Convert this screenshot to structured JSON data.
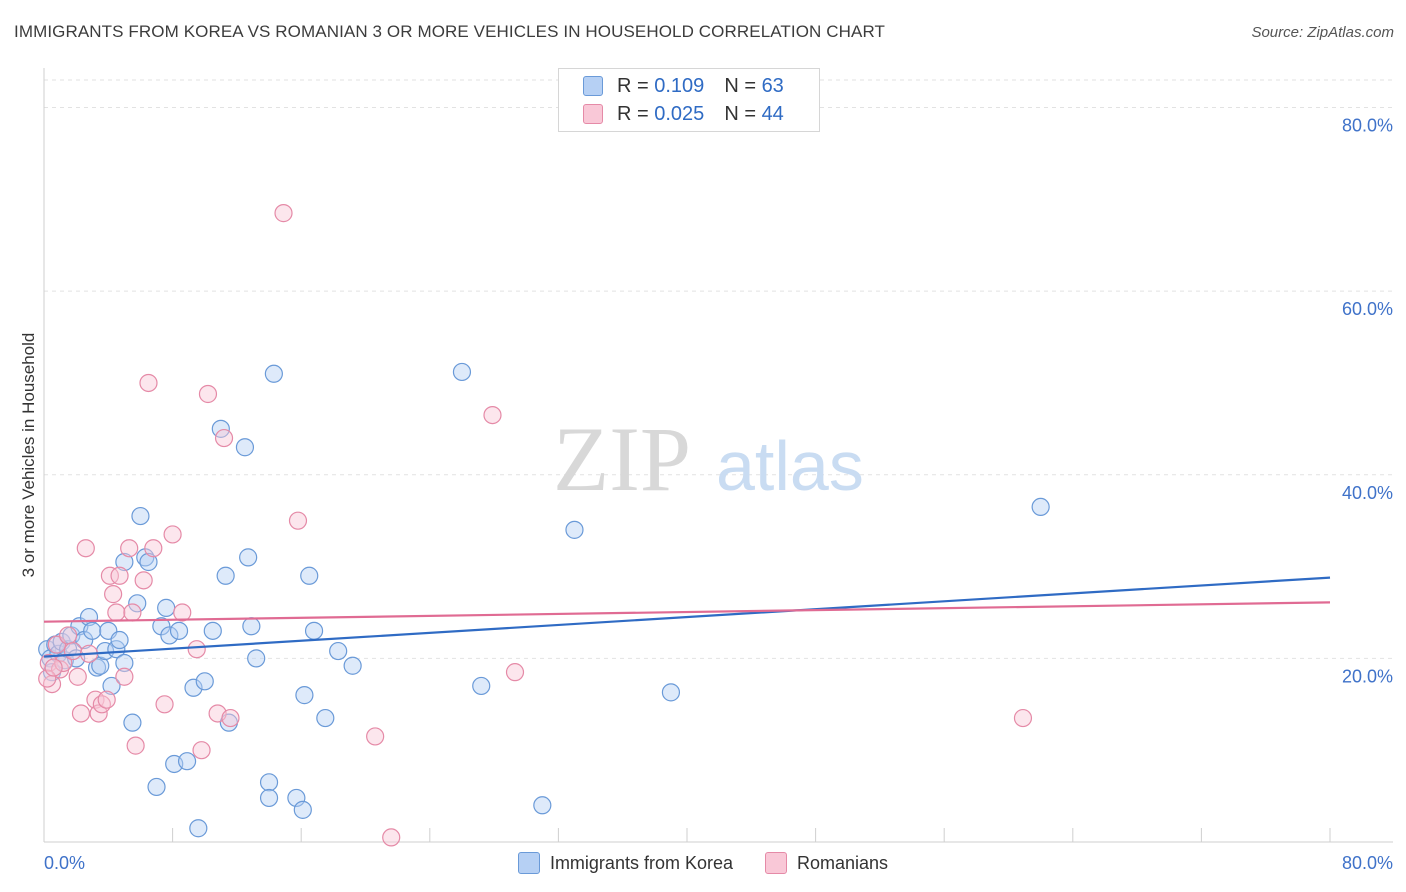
{
  "title": "IMMIGRANTS FROM KOREA VS ROMANIAN 3 OR MORE VEHICLES IN HOUSEHOLD CORRELATION CHART",
  "source": "Source: ZipAtlas.com",
  "watermark": {
    "zip": "ZIP",
    "atlas": "atlas"
  },
  "legend_top": [
    {
      "r_label": "R =",
      "r_value": "0.109",
      "n_label": "N =",
      "n_value": "63",
      "color": "#b6d0f4"
    },
    {
      "r_label": "R =",
      "r_value": "0.025",
      "n_label": "N =",
      "n_value": "44",
      "color": "#f9c8d7"
    }
  ],
  "chart_data": {
    "type": "scatter",
    "title": "IMMIGRANTS FROM KOREA VS ROMANIAN 3 OR MORE VEHICLES IN HOUSEHOLD CORRELATION CHART",
    "xlabel": "",
    "ylabel": "3 or more Vehicles in Household",
    "xlim": [
      0,
      80
    ],
    "ylim": [
      0,
      83
    ],
    "x_tick_labels": [
      "0.0%",
      "80.0%"
    ],
    "y_ticks": [
      20,
      40,
      60,
      80
    ],
    "y_tick_labels": [
      "20.0%",
      "40.0%",
      "60.0%",
      "80.0%"
    ],
    "grid": true,
    "legend_position": "bottom",
    "series": [
      {
        "name": "Immigrants from Korea",
        "color": "#6a9ad8",
        "fill": "#b6d0f4",
        "trend": {
          "x": [
            0,
            80
          ],
          "y": [
            20.2,
            28.8
          ]
        },
        "points": [
          [
            0.2,
            21.0
          ],
          [
            0.4,
            20.0
          ],
          [
            0.5,
            18.5
          ],
          [
            0.7,
            21.5
          ],
          [
            0.9,
            20.5
          ],
          [
            1.1,
            21.8
          ],
          [
            1.3,
            19.8
          ],
          [
            1.5,
            21.0
          ],
          [
            1.7,
            22.5
          ],
          [
            2.0,
            20.0
          ],
          [
            2.2,
            23.5
          ],
          [
            2.5,
            22.0
          ],
          [
            2.8,
            24.5
          ],
          [
            3.0,
            23.0
          ],
          [
            3.3,
            19.0
          ],
          [
            3.5,
            19.2
          ],
          [
            3.8,
            20.8
          ],
          [
            4.0,
            23.0
          ],
          [
            4.2,
            17.0
          ],
          [
            4.5,
            21.0
          ],
          [
            4.7,
            22.0
          ],
          [
            5.0,
            19.5
          ],
          [
            5.0,
            30.5
          ],
          [
            5.5,
            13.0
          ],
          [
            5.8,
            26.0
          ],
          [
            6.0,
            35.5
          ],
          [
            6.3,
            31.0
          ],
          [
            6.5,
            30.5
          ],
          [
            7.0,
            6.0
          ],
          [
            7.3,
            23.5
          ],
          [
            7.6,
            25.5
          ],
          [
            7.8,
            22.5
          ],
          [
            8.1,
            8.5
          ],
          [
            8.4,
            23.0
          ],
          [
            8.9,
            8.8
          ],
          [
            9.3,
            16.8
          ],
          [
            9.6,
            1.5
          ],
          [
            10.0,
            17.5
          ],
          [
            10.5,
            23.0
          ],
          [
            11.0,
            45.0
          ],
          [
            11.3,
            29.0
          ],
          [
            11.5,
            13.0
          ],
          [
            12.5,
            43.0
          ],
          [
            12.7,
            31.0
          ],
          [
            12.9,
            23.5
          ],
          [
            13.2,
            20.0
          ],
          [
            14.0,
            6.5
          ],
          [
            14.0,
            4.8
          ],
          [
            14.3,
            51.0
          ],
          [
            15.7,
            4.8
          ],
          [
            16.1,
            3.5
          ],
          [
            16.2,
            16.0
          ],
          [
            16.5,
            29.0
          ],
          [
            16.8,
            23.0
          ],
          [
            17.5,
            13.5
          ],
          [
            18.3,
            20.8
          ],
          [
            19.2,
            19.2
          ],
          [
            26.0,
            51.2
          ],
          [
            27.2,
            17.0
          ],
          [
            31.0,
            4.0
          ],
          [
            33.0,
            34.0
          ],
          [
            39.0,
            16.3
          ],
          [
            62.0,
            36.5
          ]
        ]
      },
      {
        "name": "Romanians",
        "color": "#e58aa7",
        "fill": "#f9c8d7",
        "trend": {
          "x": [
            0,
            80
          ],
          "y": [
            24.0,
            26.1
          ]
        },
        "points": [
          [
            0.3,
            19.5
          ],
          [
            0.5,
            17.2
          ],
          [
            0.8,
            21.5
          ],
          [
            1.0,
            18.8
          ],
          [
            1.2,
            19.5
          ],
          [
            1.5,
            22.5
          ],
          [
            1.8,
            20.8
          ],
          [
            2.1,
            18.0
          ],
          [
            2.3,
            14.0
          ],
          [
            2.6,
            32.0
          ],
          [
            2.8,
            20.5
          ],
          [
            3.2,
            15.5
          ],
          [
            3.4,
            14.0
          ],
          [
            3.6,
            15.0
          ],
          [
            3.9,
            15.5
          ],
          [
            4.1,
            29.0
          ],
          [
            4.3,
            27.0
          ],
          [
            4.5,
            25.0
          ],
          [
            4.7,
            29.0
          ],
          [
            5.0,
            18.0
          ],
          [
            5.3,
            32.0
          ],
          [
            5.5,
            25.0
          ],
          [
            5.7,
            10.5
          ],
          [
            6.2,
            28.5
          ],
          [
            6.5,
            50.0
          ],
          [
            6.8,
            32.0
          ],
          [
            7.5,
            15.0
          ],
          [
            8.0,
            33.5
          ],
          [
            8.6,
            25.0
          ],
          [
            9.5,
            21.0
          ],
          [
            9.8,
            10.0
          ],
          [
            10.2,
            48.8
          ],
          [
            10.8,
            14.0
          ],
          [
            11.2,
            44.0
          ],
          [
            11.6,
            13.5
          ],
          [
            14.9,
            68.5
          ],
          [
            15.8,
            35.0
          ],
          [
            20.6,
            11.5
          ],
          [
            21.6,
            0.5
          ],
          [
            27.9,
            46.5
          ],
          [
            29.3,
            18.5
          ],
          [
            60.9,
            13.5
          ],
          [
            0.2,
            17.8
          ],
          [
            0.6,
            19.0
          ]
        ]
      }
    ]
  }
}
